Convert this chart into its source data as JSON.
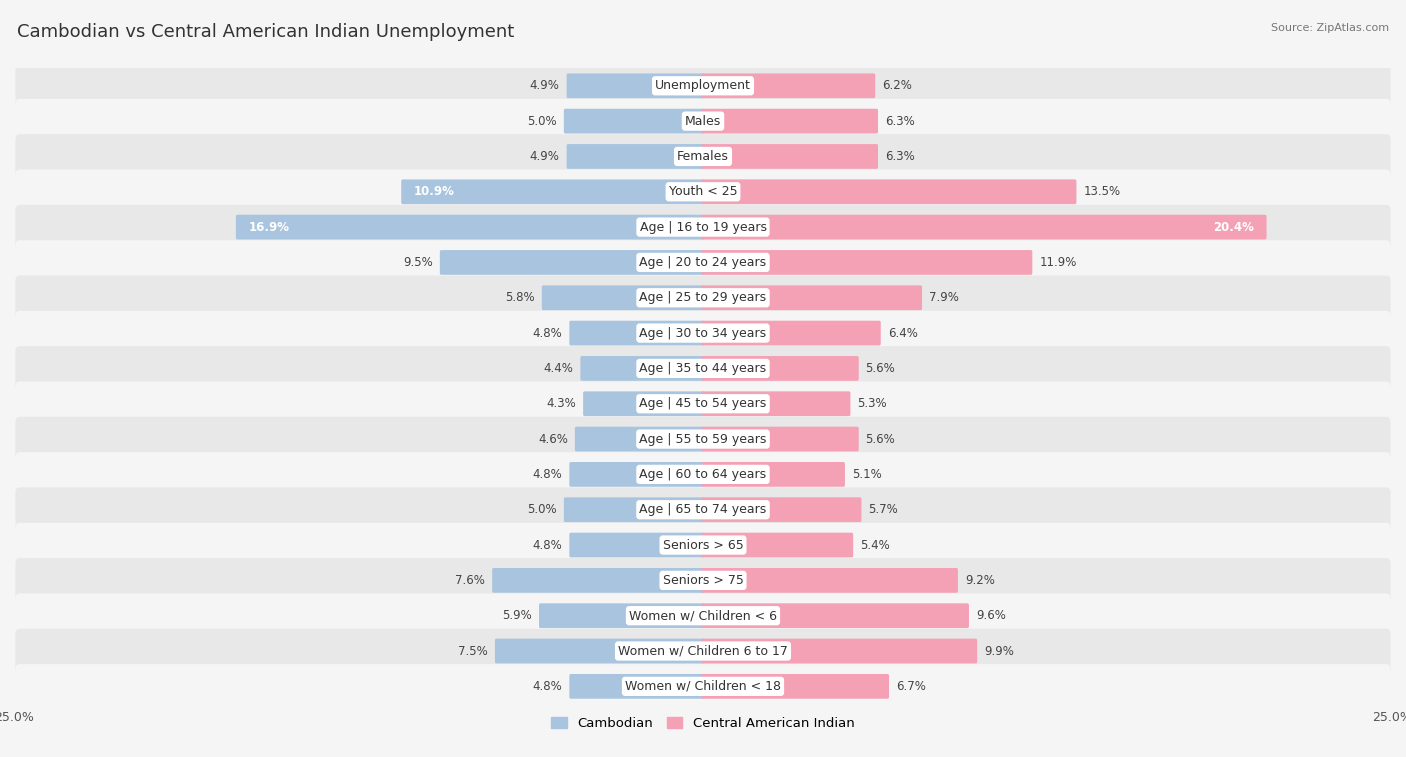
{
  "title": "Cambodian vs Central American Indian Unemployment",
  "source": "Source: ZipAtlas.com",
  "categories": [
    "Unemployment",
    "Males",
    "Females",
    "Youth < 25",
    "Age | 16 to 19 years",
    "Age | 20 to 24 years",
    "Age | 25 to 29 years",
    "Age | 30 to 34 years",
    "Age | 35 to 44 years",
    "Age | 45 to 54 years",
    "Age | 55 to 59 years",
    "Age | 60 to 64 years",
    "Age | 65 to 74 years",
    "Seniors > 65",
    "Seniors > 75",
    "Women w/ Children < 6",
    "Women w/ Children 6 to 17",
    "Women w/ Children < 18"
  ],
  "cambodian": [
    4.9,
    5.0,
    4.9,
    10.9,
    16.9,
    9.5,
    5.8,
    4.8,
    4.4,
    4.3,
    4.6,
    4.8,
    5.0,
    4.8,
    7.6,
    5.9,
    7.5,
    4.8
  ],
  "central_american_indian": [
    6.2,
    6.3,
    6.3,
    13.5,
    20.4,
    11.9,
    7.9,
    6.4,
    5.6,
    5.3,
    5.6,
    5.1,
    5.7,
    5.4,
    9.2,
    9.6,
    9.9,
    6.7
  ],
  "cambodian_color": "#a8c4de",
  "central_american_color": "#f4a0b5",
  "row_bg_even": "#e8e8e8",
  "row_bg_odd": "#f5f5f5",
  "fig_bg": "#f5f5f5",
  "axis_max": 25.0,
  "bar_height": 0.6,
  "title_fontsize": 13,
  "label_fontsize": 9,
  "value_fontsize": 8.5,
  "legend_fontsize": 9.5
}
